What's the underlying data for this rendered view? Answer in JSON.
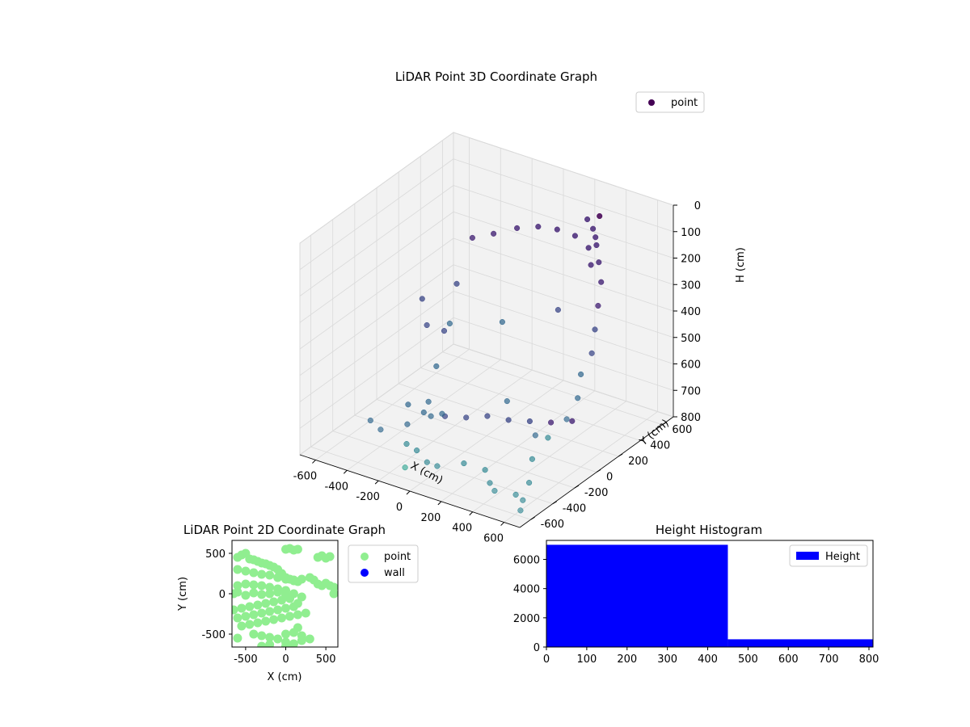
{
  "colors": {
    "viridis": [
      "#440154",
      "#482878",
      "#3e4989",
      "#31688e",
      "#26828e",
      "#1f9e89",
      "#35b779",
      "#6ece58",
      "#b5de2b",
      "#fde725"
    ],
    "point_2d": "#90ee90",
    "wall_2d": "#0000ff",
    "hist_bar": "#0000ff",
    "pane": "#f2f2f2",
    "grid": "#d9d9d9"
  },
  "chart_data": [
    {
      "type": "scatter",
      "projection": "3d",
      "title": "LiDAR Point 3D Coordinate Graph",
      "xlabel": "X (cm)",
      "ylabel": "Y (cm)",
      "zlabel": "H (cm)",
      "xlim": [
        -700,
        700
      ],
      "ylim": [
        -700,
        700
      ],
      "zlim": [
        800,
        0
      ],
      "xticks": [
        -600,
        -400,
        -200,
        0,
        200,
        400,
        600
      ],
      "yticks": [
        -600,
        -400,
        -200,
        0,
        200,
        400,
        600
      ],
      "zticks": [
        0,
        100,
        200,
        300,
        400,
        500,
        600,
        700,
        800
      ],
      "grid": true,
      "legend": {
        "position": "upper right",
        "entries": [
          "point"
        ]
      },
      "colormap": "viridis",
      "series": [
        {
          "name": "point",
          "x": [
            -300,
            -200,
            -100,
            0,
            100,
            200,
            300,
            350,
            -330,
            -340,
            -320,
            -300,
            -250,
            -200,
            250,
            300,
            330,
            350,
            400,
            450,
            500,
            550,
            600,
            600,
            650,
            650,
            600,
            -500,
            -400,
            -300,
            -200,
            -100,
            0,
            100,
            200,
            300,
            -600,
            -500,
            -400,
            -300,
            -200,
            -100,
            0,
            100,
            200,
            300,
            400,
            500,
            600,
            -550,
            -450,
            -200,
            100,
            200,
            350,
            450,
            500,
            550,
            580,
            300,
            -100
          ],
          "y": [
            300,
            350,
            420,
            470,
            500,
            520,
            500,
            450,
            200,
            100,
            0,
            -100,
            -150,
            -120,
            560,
            540,
            520,
            500,
            450,
            400,
            300,
            200,
            100,
            0,
            -100,
            -200,
            -300,
            0,
            0,
            50,
            100,
            150,
            200,
            250,
            300,
            350,
            -200,
            -250,
            -150,
            -300,
            -350,
            -400,
            -450,
            -350,
            -300,
            -400,
            -500,
            -450,
            -550,
            200,
            100,
            -50,
            0,
            -100,
            150,
            -200,
            -300,
            -400,
            -500,
            600,
            -600
          ],
          "h": [
            200,
            180,
            160,
            150,
            150,
            160,
            180,
            220,
            350,
            500,
            600,
            700,
            730,
            720,
            100,
            120,
            140,
            160,
            200,
            250,
            300,
            350,
            400,
            450,
            500,
            550,
            600,
            780,
            790,
            800,
            800,
            790,
            800,
            800,
            800,
            790,
            800,
            800,
            790,
            800,
            790,
            800,
            780,
            780,
            800,
            800,
            780,
            790,
            800,
            450,
            500,
            400,
            350,
            600,
            300,
            650,
            700,
            750,
            780,
            90,
            760
          ]
        }
      ]
    },
    {
      "type": "scatter",
      "title": "LiDAR Point 2D Coordinate Graph",
      "xlabel": "X (cm)",
      "ylabel": "Y (cm)",
      "xlim": [
        -670,
        650
      ],
      "ylim": [
        -660,
        660
      ],
      "xticks": [
        -500,
        0,
        500
      ],
      "yticks": [
        -500,
        0,
        500
      ],
      "legend": {
        "position": "right",
        "entries": [
          "point",
          "wall"
        ]
      },
      "series": [
        {
          "name": "point",
          "x": [
            -600,
            -550,
            -500,
            -450,
            -400,
            -350,
            -300,
            -250,
            -200,
            -150,
            -100,
            -50,
            0,
            50,
            100,
            150,
            -600,
            -500,
            -400,
            -300,
            -200,
            -100,
            0,
            100,
            200,
            300,
            350,
            400,
            450,
            500,
            550,
            600,
            -600,
            -500,
            -400,
            -300,
            -200,
            -100,
            0,
            -650,
            -600,
            -500,
            -400,
            -300,
            -200,
            -100,
            0,
            100,
            200,
            -650,
            -550,
            -450,
            -350,
            -250,
            -150,
            -50,
            50,
            150,
            -600,
            -500,
            -400,
            -300,
            -200,
            -100,
            0,
            100,
            -550,
            -450,
            -350,
            -250,
            -150,
            -50,
            50,
            150,
            250,
            -600,
            -400,
            -300,
            -200,
            -100,
            0,
            100,
            200,
            300,
            0,
            50,
            100,
            150,
            400,
            450,
            500,
            550,
            600,
            -300,
            -200,
            0,
            100,
            200,
            150,
            0
          ],
          "y": [
            450,
            480,
            500,
            430,
            420,
            400,
            380,
            370,
            350,
            330,
            300,
            250,
            200,
            180,
            160,
            150,
            300,
            280,
            260,
            240,
            230,
            200,
            180,
            170,
            180,
            200,
            170,
            120,
            100,
            130,
            100,
            80,
            100,
            120,
            110,
            100,
            80,
            60,
            40,
            0,
            20,
            -20,
            10,
            -10,
            0,
            20,
            -20,
            0,
            -40,
            -200,
            -180,
            -160,
            -140,
            -120,
            -100,
            -80,
            -60,
            -120,
            -300,
            -280,
            -260,
            -240,
            -220,
            -200,
            -180,
            -160,
            -400,
            -380,
            -360,
            -340,
            -320,
            -300,
            -280,
            -260,
            -240,
            -550,
            -500,
            -520,
            -540,
            -560,
            -500,
            -480,
            -520,
            -560,
            550,
            560,
            540,
            550,
            450,
            470,
            440,
            460,
            0,
            -650,
            -630,
            -600,
            -620,
            -580,
            -420,
            -650
          ]
        },
        {
          "name": "wall",
          "x": [],
          "y": []
        }
      ]
    },
    {
      "type": "bar",
      "subtype": "histogram",
      "title": "Height Histogram",
      "xlim": [
        0,
        810
      ],
      "ylim": [
        0,
        7300
      ],
      "xticks": [
        0,
        100,
        200,
        300,
        400,
        500,
        600,
        700,
        800
      ],
      "yticks": [
        0,
        2000,
        4000,
        6000
      ],
      "legend": {
        "position": "upper right",
        "entries": [
          "Height"
        ]
      },
      "bins": [
        [
          0,
          450
        ],
        [
          450,
          810
        ]
      ],
      "values": [
        7000,
        530
      ],
      "series": [
        {
          "name": "Height",
          "values": [
            7000,
            530
          ]
        }
      ]
    }
  ]
}
